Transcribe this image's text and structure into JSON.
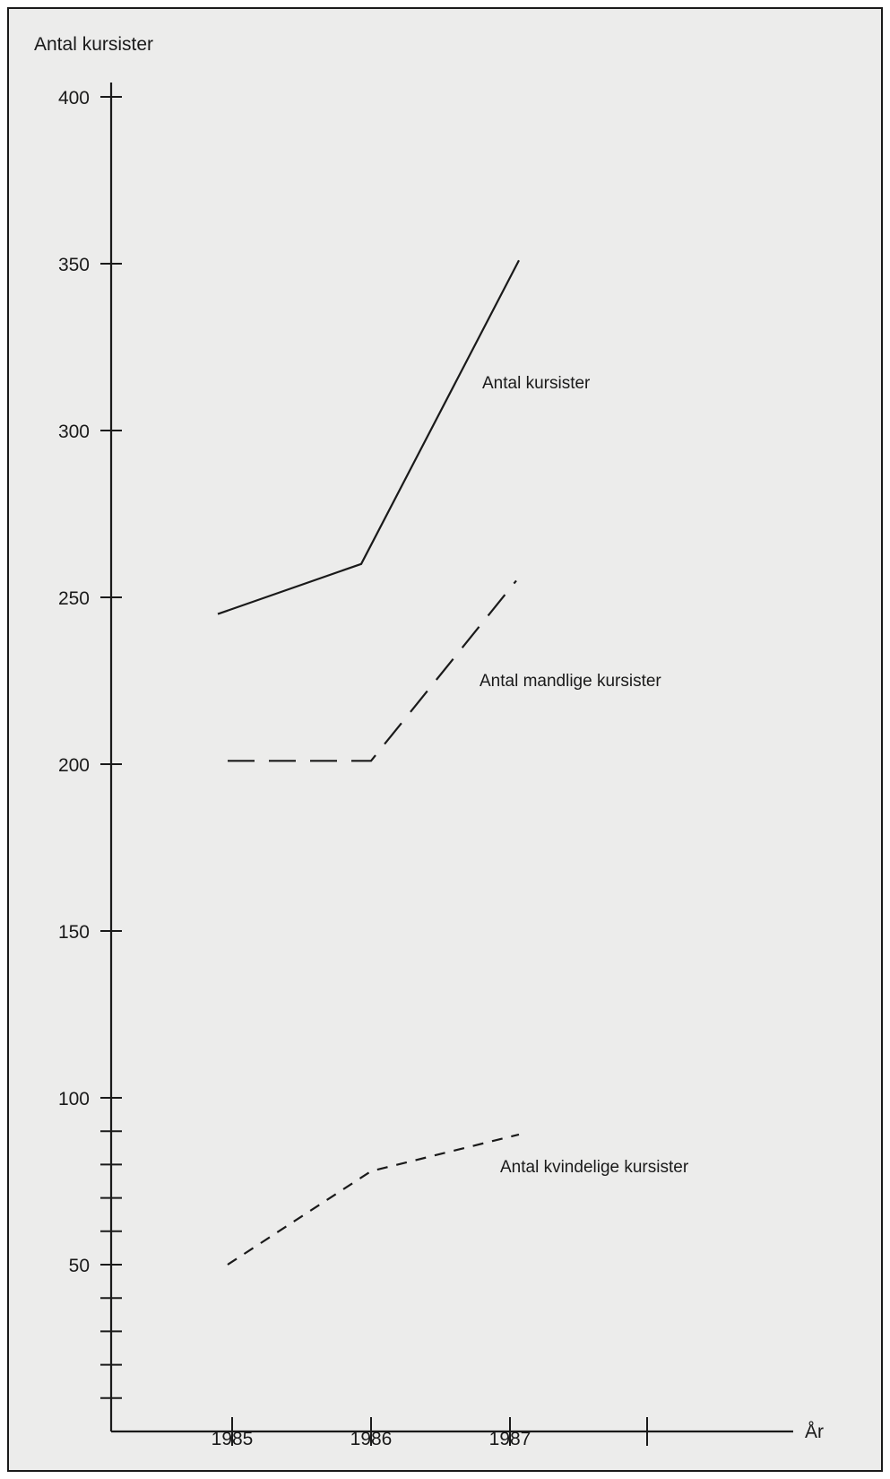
{
  "chart_data": {
    "type": "line",
    "ylabel": "Antal kursister",
    "xlabel": "År",
    "x": [
      "1985",
      "1986",
      "1987"
    ],
    "x_axis_slots": [
      "1985",
      "1986",
      "1987",
      ""
    ],
    "ylim": [
      0,
      400
    ],
    "y_ticks_labeled": [
      50,
      100,
      150,
      200,
      250,
      300,
      350,
      400
    ],
    "y_ticks_minor": [
      10,
      20,
      30,
      40,
      60,
      70,
      80,
      90
    ],
    "grid": false,
    "series": [
      {
        "name": "Antal kursister",
        "style": "solid",
        "values": [
          245,
          260,
          351
        ]
      },
      {
        "name": "Antal mandlige kursister",
        "style": "long-dash",
        "values": [
          201,
          201,
          255
        ]
      },
      {
        "name": "Antal kvindelige kursister",
        "style": "short-dash",
        "values": [
          50,
          78,
          89
        ]
      }
    ],
    "colors": {
      "background": "#ececeb",
      "ink": "#1a1a1a"
    }
  }
}
